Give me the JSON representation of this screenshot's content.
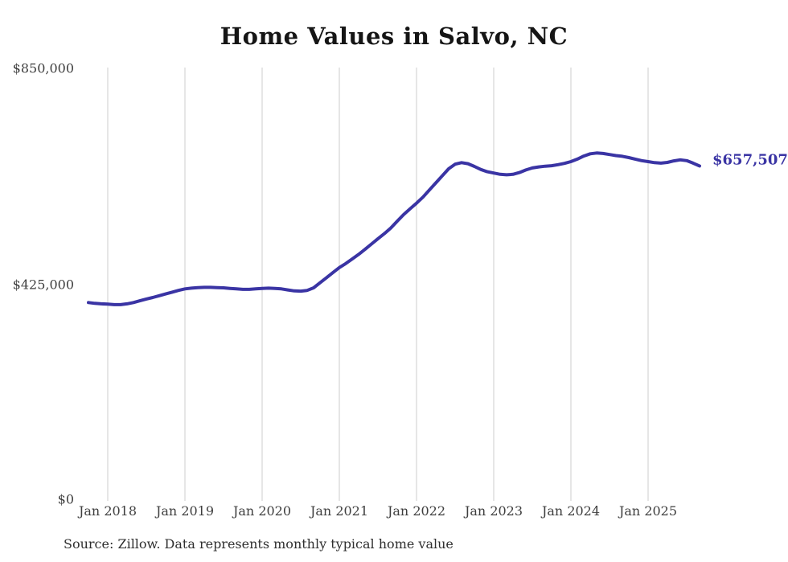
{
  "chart_data": {
    "type": "line",
    "title": "Home Values in Salvo, NC",
    "grid": "vertical-only",
    "legend": "none",
    "ylim": [
      0,
      850000
    ],
    "y_tick_values": [
      850000,
      425000,
      0
    ],
    "y_tick_labels": [
      "$850,000",
      "$425,000",
      "$0"
    ],
    "x_tick_labels": [
      "Jan 2018",
      "Jan 2019",
      "Jan 2020",
      "Jan 2021",
      "Jan 2022",
      "Jan 2023",
      "Jan 2024",
      "Jan 2025"
    ],
    "line_color": "#3a34a4",
    "gridline_color": "#cccccc",
    "end_label": "$657,507",
    "end_value": 657507,
    "series": [
      {
        "name": "Monthly typical home value",
        "frequency": "monthly",
        "start_month": "2017-10",
        "end_month": "2025-09",
        "values": [
          388000,
          386500,
          385500,
          385000,
          384000,
          384000,
          385500,
          388000,
          391500,
          395000,
          398000,
          401500,
          405000,
          408500,
          412000,
          415000,
          416500,
          417500,
          418000,
          418000,
          417500,
          417000,
          416000,
          415000,
          414000,
          414000,
          415000,
          416000,
          416500,
          416000,
          415000,
          413000,
          411000,
          410500,
          412000,
          417000,
          427000,
          437000,
          447000,
          457000,
          465000,
          474000,
          483000,
          493000,
          503500,
          514000,
          524000,
          535000,
          548500,
          561500,
          573000,
          584000,
          596000,
          610000,
          624000,
          638000,
          652000,
          661000,
          664000,
          662000,
          656500,
          650500,
          646000,
          643500,
          641000,
          640000,
          641000,
          644500,
          649500,
          653500,
          655500,
          657000,
          658000,
          660000,
          662500,
          666000,
          671000,
          677000,
          681500,
          683000,
          682000,
          680000,
          678000,
          676500,
          674000,
          671000,
          668000,
          666000,
          664000,
          663000,
          664500,
          667500,
          669500,
          668000,
          663000,
          657507
        ]
      }
    ]
  },
  "footer": {
    "source_note": "Source: Zillow. Data represents monthly typical home value"
  }
}
